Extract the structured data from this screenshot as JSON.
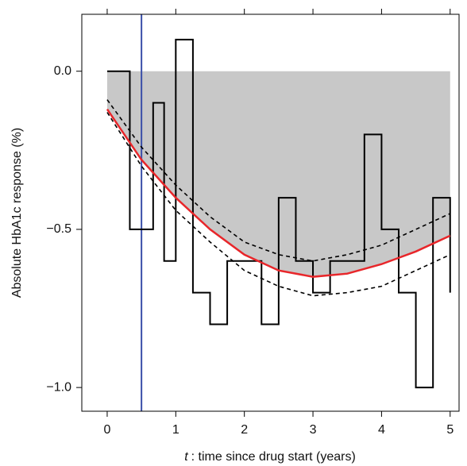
{
  "chart_data": {
    "type": "line",
    "ylabel": "Absolute HbA1c response (%)",
    "xlabel_symbol": "t",
    "xlabel": ": time since drug start (years)",
    "xlim": [
      -0.37,
      5.13
    ],
    "ylim": [
      -1.075,
      0.18
    ],
    "xticks": [
      0,
      1,
      2,
      3,
      4,
      5
    ],
    "yticks": [
      {
        "value": 0,
        "label": "0.0"
      },
      {
        "value": -0.5,
        "label": "−0.5"
      },
      {
        "value": -1.0,
        "label": "−1.0"
      }
    ],
    "vline": {
      "x": 0.5,
      "color": "#3a4fa8"
    },
    "series": [
      {
        "style": "step",
        "color": "#000000",
        "x": [
          0,
          0.33,
          0.67,
          0.83,
          1.0,
          1.25,
          1.5,
          1.75,
          2.25,
          2.5,
          2.75,
          3.0,
          3.25,
          3.75,
          4.0,
          4.25,
          4.5,
          4.75,
          5.0
        ],
        "values": [
          0.0,
          -0.5,
          -0.1,
          -0.6,
          0.1,
          -0.7,
          -0.8,
          -0.6,
          -0.8,
          -0.4,
          -0.6,
          -0.7,
          -0.6,
          -0.2,
          -0.5,
          -0.7,
          -1.0,
          -0.4,
          -0.7
        ]
      },
      {
        "style": "solid",
        "color": "#e8262a",
        "fill": "#c8c8c8",
        "x": [
          0,
          0.5,
          1,
          1.5,
          2,
          2.5,
          3,
          3.5,
          4,
          4.5,
          5
        ],
        "values": [
          -0.12,
          -0.28,
          -0.4,
          -0.5,
          -0.58,
          -0.63,
          -0.65,
          -0.64,
          -0.61,
          -0.57,
          -0.52
        ]
      },
      {
        "style": "dashed",
        "color": "#000000",
        "x": [
          0,
          0.5,
          1,
          1.5,
          2,
          2.5,
          3,
          3.5,
          4,
          4.5,
          5
        ],
        "values": [
          -0.09,
          -0.24,
          -0.36,
          -0.46,
          -0.54,
          -0.58,
          -0.6,
          -0.58,
          -0.55,
          -0.5,
          -0.45
        ]
      },
      {
        "style": "dashed",
        "color": "#000000",
        "x": [
          0,
          0.5,
          1,
          1.5,
          2,
          2.5,
          3,
          3.5,
          4,
          4.5,
          5
        ],
        "values": [
          -0.13,
          -0.3,
          -0.44,
          -0.54,
          -0.63,
          -0.68,
          -0.71,
          -0.7,
          -0.68,
          -0.63,
          -0.58
        ]
      }
    ]
  }
}
